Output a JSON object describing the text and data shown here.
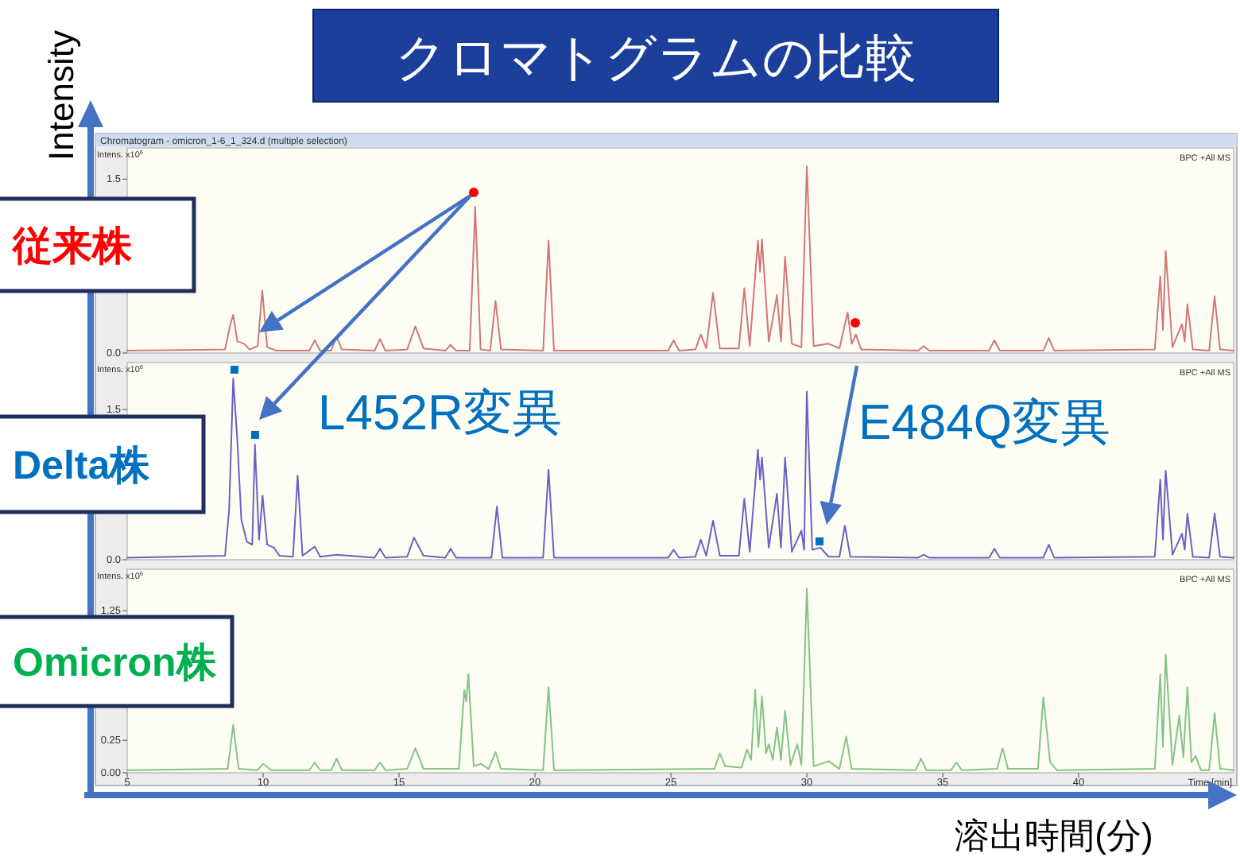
{
  "chart_data": [
    {
      "type": "line",
      "title": "クロマトグラムの比較",
      "ylabel": "Intens. x10$^{6}$",
      "xlim": [
        5,
        45.7
      ],
      "ylim": [
        0,
        1.77
      ],
      "tick_labels": "y",
      "yticks": [
        {
          "value": 0,
          "label": "0.0"
        },
        {
          "value": 1.5,
          "label": "1.5"
        }
      ],
      "annotations": [
        "Chromatogram - omicron_1-6_1_324.d (multiple selection)",
        "BPC +All MS",
        "Intensity"
      ],
      "series": [
        {
          "name": "従来株",
          "color": "#d07878",
          "x": [
            5,
            8.6,
            8.8,
            8.9,
            9.05,
            9.3,
            9.5,
            9.8,
            9.97,
            10.15,
            10.5,
            11.7,
            11.9,
            12.1,
            12.5,
            12.7,
            12.9,
            14.1,
            14.3,
            14.5,
            15.3,
            15.6,
            15.9,
            16.7,
            16.9,
            17.1,
            17.6,
            17.8,
            18.0,
            18.35,
            18.55,
            18.75,
            20.3,
            20.5,
            20.7,
            24.9,
            25.1,
            25.3,
            25.9,
            26.1,
            26.3,
            26.55,
            26.8,
            27.5,
            27.7,
            27.9,
            28.2,
            28.28,
            28.35,
            28.6,
            28.9,
            29.05,
            29.2,
            29.45,
            29.8,
            30.0,
            30.25,
            30.8,
            31.2,
            31.5,
            31.65,
            31.8,
            32.0,
            34.1,
            34.3,
            34.5,
            36.7,
            36.9,
            37.1,
            38.7,
            38.9,
            39.1,
            42.8,
            43.0,
            43.1,
            43.2,
            43.45,
            43.8,
            43.9,
            44.0,
            44.2,
            44.8,
            45.0,
            45.2,
            45.7
          ],
          "values": [
            0.02,
            0.03,
            0.25,
            0.33,
            0.1,
            0.08,
            0.03,
            0.06,
            0.54,
            0.05,
            0.02,
            0.02,
            0.11,
            0.02,
            0.02,
            0.14,
            0.03,
            0.02,
            0.12,
            0.02,
            0.03,
            0.23,
            0.04,
            0.02,
            0.07,
            0.02,
            0.02,
            1.26,
            0.03,
            0.02,
            0.45,
            0.03,
            0.02,
            0.97,
            0.02,
            0.02,
            0.11,
            0.02,
            0.03,
            0.16,
            0.04,
            0.52,
            0.04,
            0.04,
            0.56,
            0.06,
            0.97,
            0.7,
            0.98,
            0.1,
            0.5,
            0.1,
            0.83,
            0.08,
            0.05,
            1.61,
            0.06,
            0.08,
            0.04,
            0.35,
            0.08,
            0.16,
            0.03,
            0.02,
            0.06,
            0.02,
            0.02,
            0.11,
            0.02,
            0.02,
            0.13,
            0.02,
            0.03,
            0.66,
            0.2,
            0.88,
            0.05,
            0.25,
            0.1,
            0.42,
            0.03,
            0.02,
            0.49,
            0.03,
            0.02
          ]
        }
      ]
    },
    {
      "type": "line",
      "ylabel": "Intens. x10$^{6}$",
      "xlim": [
        5,
        45.7
      ],
      "ylim": [
        0,
        1.97
      ],
      "tick_labels": "y",
      "yticks": [
        {
          "value": 0,
          "label": "0.0"
        },
        {
          "value": 1.5,
          "label": "1.5"
        }
      ],
      "annotations": [
        "BPC +All MS",
        "L452R変異",
        "E484Q変異"
      ],
      "series": [
        {
          "name": "Delta株",
          "color": "#6a62c4",
          "x": [
            5,
            8.6,
            8.75,
            8.9,
            9.05,
            9.2,
            9.4,
            9.6,
            9.7,
            9.85,
            9.98,
            10.15,
            10.4,
            10.6,
            11.1,
            11.27,
            11.45,
            11.9,
            12.1,
            12.7,
            14.1,
            14.3,
            14.5,
            15.3,
            15.55,
            15.9,
            16.7,
            16.9,
            17.1,
            18.4,
            18.6,
            18.8,
            20.3,
            20.5,
            20.7,
            24.9,
            25.1,
            25.3,
            25.9,
            26.1,
            26.3,
            26.55,
            26.8,
            27.5,
            27.7,
            27.9,
            28.2,
            28.28,
            28.35,
            28.6,
            28.9,
            29.05,
            29.2,
            29.45,
            29.8,
            29.9,
            30.0,
            30.2,
            30.5,
            30.8,
            31.2,
            31.4,
            31.6,
            34.1,
            34.3,
            34.5,
            36.7,
            36.9,
            37.1,
            38.7,
            38.9,
            39.1,
            42.8,
            43.0,
            43.1,
            43.2,
            43.45,
            43.8,
            43.9,
            44.0,
            44.2,
            44.8,
            45.0,
            45.2,
            45.7
          ],
          "values": [
            0.02,
            0.04,
            0.5,
            1.81,
            1.2,
            0.4,
            0.18,
            0.15,
            1.15,
            0.2,
            0.64,
            0.15,
            0.12,
            0.04,
            0.03,
            0.84,
            0.04,
            0.13,
            0.03,
            0.05,
            0.02,
            0.11,
            0.02,
            0.03,
            0.22,
            0.04,
            0.02,
            0.11,
            0.02,
            0.02,
            0.53,
            0.02,
            0.02,
            0.9,
            0.02,
            0.02,
            0.1,
            0.02,
            0.03,
            0.2,
            0.04,
            0.39,
            0.04,
            0.04,
            0.61,
            0.08,
            1.1,
            0.8,
            1.02,
            0.12,
            0.66,
            0.12,
            1.02,
            0.08,
            0.29,
            0.1,
            1.68,
            0.1,
            0.12,
            0.03,
            0.03,
            0.34,
            0.03,
            0.02,
            0.05,
            0.02,
            0.02,
            0.11,
            0.02,
            0.02,
            0.15,
            0.02,
            0.03,
            0.8,
            0.2,
            0.89,
            0.05,
            0.26,
            0.1,
            0.46,
            0.03,
            0.02,
            0.46,
            0.03,
            0.02
          ]
        }
      ]
    },
    {
      "type": "line",
      "ylabel": "Intens. x10$^{6}$",
      "xlabel": "Time [min]",
      "xlim": [
        5,
        45.7
      ],
      "ylim": [
        0,
        1.57
      ],
      "xticks": [
        5,
        10,
        15,
        20,
        25,
        30,
        35,
        40
      ],
      "yticks": [
        {
          "value": 0,
          "label": "0.00"
        },
        {
          "value": 0.25,
          "label": "0.25"
        },
        {
          "value": 1.25,
          "label": "1.25"
        }
      ],
      "annotations": [
        "BPC +All MS",
        "溶出時間(分)"
      ],
      "series": [
        {
          "name": "Omicron株",
          "color": "#84c484",
          "x": [
            5,
            8.7,
            8.9,
            9.1,
            9.8,
            10.0,
            10.3,
            11.7,
            11.9,
            12.1,
            12.5,
            12.7,
            12.9,
            14.1,
            14.3,
            14.5,
            15.3,
            15.6,
            15.9,
            17.2,
            17.4,
            17.47,
            17.55,
            17.75,
            18.0,
            18.3,
            18.55,
            18.75,
            20.3,
            20.5,
            20.7,
            26.6,
            26.8,
            27.0,
            27.6,
            27.8,
            27.95,
            28.1,
            28.22,
            28.35,
            28.5,
            28.6,
            28.75,
            28.9,
            29.05,
            29.2,
            29.4,
            29.65,
            29.8,
            30.0,
            30.25,
            30.8,
            31.2,
            31.45,
            31.65,
            34.0,
            34.2,
            34.4,
            35.3,
            35.5,
            35.7,
            37.0,
            37.2,
            37.4,
            38.5,
            38.7,
            38.95,
            39.2,
            42.8,
            43.0,
            43.1,
            43.2,
            43.45,
            43.7,
            43.85,
            44.0,
            44.15,
            44.3,
            44.5,
            44.8,
            45.0,
            45.2,
            45.7
          ],
          "values": [
            0.02,
            0.03,
            0.37,
            0.03,
            0.02,
            0.07,
            0.02,
            0.02,
            0.08,
            0.02,
            0.02,
            0.11,
            0.02,
            0.02,
            0.08,
            0.02,
            0.03,
            0.19,
            0.03,
            0.03,
            0.64,
            0.55,
            0.76,
            0.05,
            0.07,
            0.03,
            0.16,
            0.03,
            0.02,
            0.66,
            0.02,
            0.03,
            0.15,
            0.05,
            0.04,
            0.18,
            0.1,
            0.64,
            0.2,
            0.59,
            0.15,
            0.22,
            0.1,
            0.35,
            0.1,
            0.48,
            0.06,
            0.22,
            0.06,
            1.42,
            0.05,
            0.09,
            0.03,
            0.28,
            0.03,
            0.02,
            0.11,
            0.02,
            0.02,
            0.08,
            0.02,
            0.03,
            0.19,
            0.03,
            0.03,
            0.58,
            0.08,
            0.02,
            0.03,
            0.76,
            0.2,
            0.91,
            0.06,
            0.44,
            0.12,
            0.66,
            0.08,
            0.13,
            0.02,
            0.02,
            0.46,
            0.03,
            0.02
          ]
        }
      ]
    }
  ]
}
